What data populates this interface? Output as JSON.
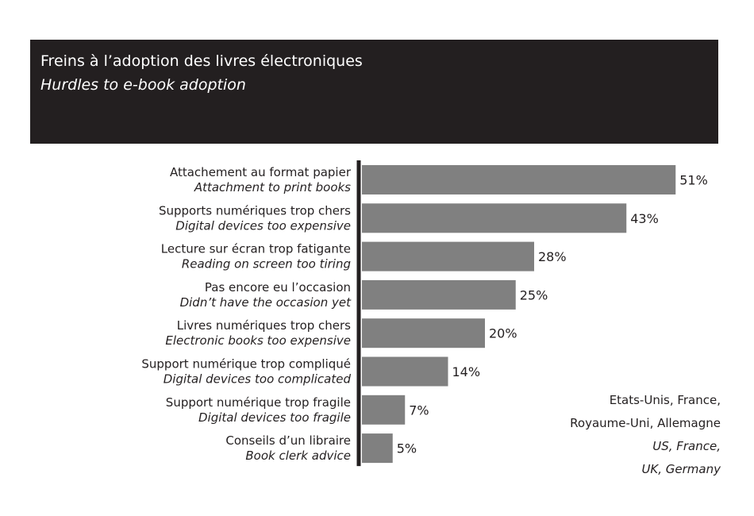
{
  "header": {
    "title_fr": "Freins à l’adoption des livres électroniques",
    "title_en": "Hurdles to e-book adoption"
  },
  "note": {
    "fr_line1": "Etats-Unis, France,",
    "fr_line2": "Royaume-Uni, Allemagne",
    "en_line1": "US, France,",
    "en_line2": "UK, Germany"
  },
  "colors": {
    "bar": "#808080",
    "axis": "#231f20",
    "header_bg": "#231f20"
  },
  "chart_data": {
    "type": "bar",
    "orientation": "horizontal",
    "unit": "%",
    "categories": [
      {
        "fr": "Attachement au format papier",
        "en": "Attachment to print books"
      },
      {
        "fr": "Supports numériques trop chers",
        "en": "Digital devices too expensive"
      },
      {
        "fr": "Lecture sur écran trop fatigante",
        "en": "Reading on screen too tiring"
      },
      {
        "fr": "Pas encore eu l’occasion",
        "en": "Didn’t have the occasion yet"
      },
      {
        "fr": "Livres numériques trop chers",
        "en": "Electronic books too expensive"
      },
      {
        "fr": "Support numérique trop compliqué",
        "en": "Digital devices too complicated"
      },
      {
        "fr": "Support numérique trop fragile",
        "en": "Digital devices too fragile"
      },
      {
        "fr": "Conseils d’un libraire",
        "en": "Book clerk advice"
      }
    ],
    "values": [
      51,
      43,
      28,
      25,
      20,
      14,
      7,
      5
    ],
    "value_labels": [
      "51%",
      "43%",
      "28%",
      "25%",
      "20%",
      "14%",
      "7%",
      "5%"
    ]
  }
}
